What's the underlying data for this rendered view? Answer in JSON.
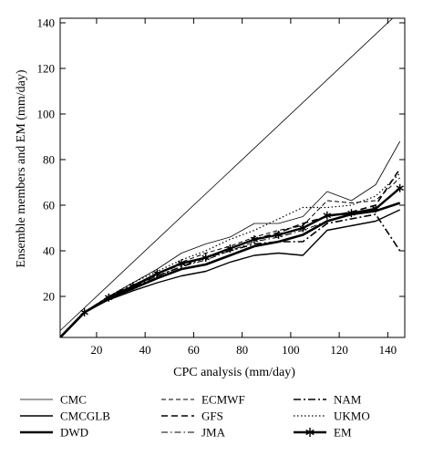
{
  "chart_data": {
    "type": "line",
    "xlabel": "CPC analysis (mm/day)",
    "ylabel": "Ensemble members and EM (mm/day)",
    "xlim": [
      5,
      147
    ],
    "ylim": [
      2,
      142
    ],
    "xticks": [
      20,
      40,
      60,
      80,
      100,
      120,
      140
    ],
    "yticks": [
      20,
      40,
      60,
      80,
      100,
      120,
      140
    ],
    "grid": false,
    "legend_position": "bottom",
    "reference_line": {
      "x": [
        5,
        145
      ],
      "y": [
        5,
        145
      ]
    },
    "series": [
      {
        "name": "CMC",
        "style": "thin-solid",
        "x": [
          5,
          15,
          25,
          35,
          45,
          55,
          65,
          75,
          85,
          95,
          105,
          115,
          125,
          135,
          145
        ],
        "y": [
          2,
          13,
          20,
          26,
          32,
          39,
          43,
          46,
          52,
          52,
          55,
          66,
          62,
          69,
          88
        ]
      },
      {
        "name": "CMCGLB",
        "style": "solid",
        "x": [
          5,
          15,
          25,
          35,
          45,
          55,
          65,
          75,
          85,
          95,
          105,
          115,
          125,
          135,
          145
        ],
        "y": [
          2,
          13,
          18.5,
          22.5,
          26,
          29,
          31,
          35,
          38,
          39,
          38,
          49,
          51,
          53,
          58
        ]
      },
      {
        "name": "DWD",
        "style": "thick-solid",
        "x": [
          5,
          15,
          25,
          35,
          45,
          55,
          65,
          75,
          85,
          95,
          105,
          115,
          125,
          135,
          145
        ],
        "y": [
          2,
          13,
          19,
          23.5,
          28,
          32,
          34,
          38,
          42,
          44,
          47,
          53,
          56,
          57.5,
          61
        ]
      },
      {
        "name": "ECMWF",
        "style": "dashed",
        "x": [
          5,
          15,
          25,
          35,
          45,
          55,
          65,
          75,
          85,
          95,
          105,
          115,
          125,
          135,
          145
        ],
        "y": [
          2,
          13,
          19.5,
          25,
          30,
          35,
          39,
          42,
          46,
          49,
          51,
          62,
          61,
          62,
          72
        ]
      },
      {
        "name": "GFS",
        "style": "dash-dash",
        "x": [
          5,
          15,
          25,
          35,
          45,
          55,
          65,
          75,
          85,
          95,
          105,
          115,
          125,
          135,
          145
        ],
        "y": [
          2,
          13,
          19,
          24,
          30,
          34,
          37,
          41,
          45,
          48,
          52,
          55,
          57,
          60,
          76
        ]
      },
      {
        "name": "JMA",
        "style": "dash-dot",
        "x": [
          5,
          15,
          25,
          35,
          45,
          55,
          65,
          75,
          85,
          95,
          105,
          115,
          125,
          135,
          145
        ],
        "y": [
          2,
          13,
          19,
          24,
          29,
          33,
          36,
          40,
          44,
          46,
          49,
          53,
          56,
          58,
          68
        ]
      },
      {
        "name": "NAM",
        "style": "dash-dot-heavy",
        "x": [
          5,
          15,
          25,
          35,
          45,
          55,
          65,
          75,
          85,
          95,
          105,
          115,
          125,
          135,
          145
        ],
        "y": [
          2,
          13,
          20,
          25,
          29,
          33,
          37,
          40,
          43,
          44,
          44,
          52,
          54,
          56,
          40
        ]
      },
      {
        "name": "UKMO",
        "style": "dotted",
        "x": [
          5,
          15,
          25,
          35,
          45,
          55,
          65,
          75,
          85,
          95,
          105,
          115,
          125,
          135,
          145
        ],
        "y": [
          2,
          13,
          20,
          26,
          31,
          36,
          40,
          45,
          49,
          54,
          59,
          59,
          60,
          64,
          74
        ]
      },
      {
        "name": "EM",
        "style": "thick-solid-star",
        "x": [
          5,
          15,
          25,
          35,
          45,
          55,
          65,
          75,
          85,
          95,
          105,
          115,
          125,
          135,
          145
        ],
        "y": [
          2,
          13,
          19.5,
          24.5,
          30,
          34.5,
          37,
          41,
          45,
          47,
          50,
          55.5,
          56.5,
          58.5,
          67.5
        ]
      }
    ]
  }
}
